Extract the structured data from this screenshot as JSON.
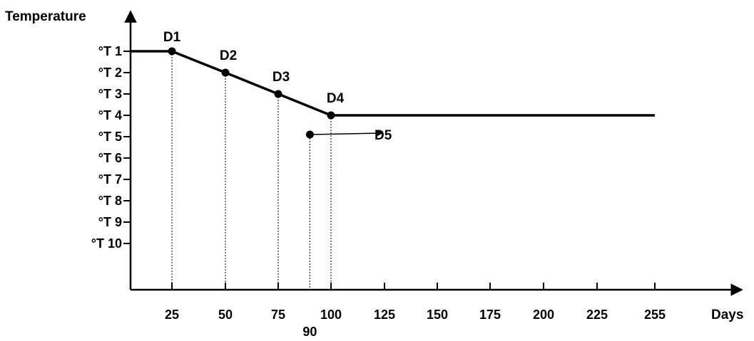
{
  "chart_data": {
    "type": "line",
    "ylabel": "Temperature",
    "xlabel": "Days",
    "y_ticks": [
      "°T 1",
      "°T 2",
      "°T 3",
      "°T 4",
      "°T 5",
      "°T 6",
      "°T 7",
      "°T 8",
      "°T 9",
      "°T 10"
    ],
    "x_ticks": [
      25,
      50,
      75,
      100,
      125,
      150,
      175,
      200,
      225,
      255
    ],
    "x_ticks_display": [
      "25",
      "50",
      "75",
      "100",
      "125",
      "150",
      "175",
      "200",
      "225",
      "255"
    ],
    "extra_x_tick": {
      "value": 90,
      "label": "90"
    },
    "series": [
      {
        "x": [
          0,
          25,
          50,
          75,
          100,
          255
        ],
        "y": [
          1,
          1,
          2,
          3,
          4,
          4
        ]
      }
    ],
    "points": [
      {
        "label": "D1",
        "x": 25,
        "y": 1
      },
      {
        "label": "D2",
        "x": 50,
        "y": 2
      },
      {
        "label": "D3",
        "x": 75,
        "y": 3
      },
      {
        "label": "D4",
        "x": 100,
        "y": 4
      }
    ],
    "d5": {
      "label": "D5",
      "x": 90,
      "y": 4.8,
      "arrow_to_x": 120
    },
    "ylim": [
      0,
      13
    ],
    "grid": false,
    "colors": {
      "line": "#000000",
      "background": "#ffffff"
    }
  }
}
